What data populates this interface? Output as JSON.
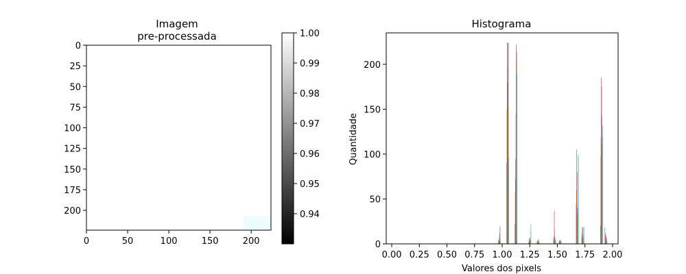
{
  "chart_data": [
    {
      "type": "heatmap",
      "title_line1": "Imagem",
      "title_line2": "pre-processada",
      "xticks": [
        "0",
        "50",
        "100",
        "150",
        "200"
      ],
      "yticks": [
        "0",
        "25",
        "50",
        "75",
        "100",
        "125",
        "150",
        "175",
        "200"
      ],
      "xlim": [
        0,
        224
      ],
      "ylim": [
        224,
        0
      ],
      "image_fill": "#ffffff",
      "corner_tint": "#eefbfb",
      "colorbar": {
        "colormap": "gray",
        "range": [
          0.93,
          1.0
        ],
        "ticks": [
          "0.94",
          "0.95",
          "0.96",
          "0.97",
          "0.98",
          "0.99",
          "1.00"
        ]
      }
    },
    {
      "type": "bar",
      "title": "Histograma",
      "xlabel": "Valores dos pixels",
      "ylabel": "Quantidade",
      "xlim": [
        -0.05,
        2.05
      ],
      "ylim": [
        0,
        235
      ],
      "xticks": [
        "0.00",
        "0.25",
        "0.50",
        "0.75",
        "1.00",
        "1.25",
        "1.50",
        "1.75",
        "2.00"
      ],
      "yticks": [
        "0",
        "50",
        "100",
        "150",
        "200"
      ],
      "colors": [
        "#1f77b4",
        "#ff7f0e",
        "#2ca02c",
        "#d62728",
        "#9467bd",
        "#8c564b",
        "#e377c2",
        "#7f7f7f",
        "#bcbd22",
        "#17becf"
      ],
      "groups": [
        {
          "x": 0.975,
          "values": [
            4,
            3,
            2,
            5,
            8,
            12,
            18,
            20,
            6,
            3
          ]
        },
        {
          "x": 1.05,
          "values": [
            90,
            150,
            180,
            224,
            224,
            224,
            195,
            224,
            155,
            96
          ]
        },
        {
          "x": 1.125,
          "values": [
            22,
            58,
            72,
            95,
            145,
            222,
            218,
            214,
            205,
            190
          ]
        },
        {
          "x": 1.25,
          "values": [
            2,
            4,
            6,
            3,
            5,
            7,
            2,
            4,
            14,
            22
          ]
        },
        {
          "x": 1.325,
          "values": [
            2,
            3,
            1,
            4,
            2,
            5,
            3,
            2,
            4,
            3
          ]
        },
        {
          "x": 1.475,
          "values": [
            6,
            8,
            4,
            37,
            16,
            8,
            5,
            3,
            6,
            4
          ]
        },
        {
          "x": 1.525,
          "values": [
            2,
            3,
            4,
            2,
            5,
            3,
            2,
            4,
            3,
            2
          ]
        },
        {
          "x": 1.68,
          "values": [
            45,
            60,
            105,
            80,
            40,
            35,
            100,
            40,
            30,
            98
          ]
        },
        {
          "x": 1.73,
          "values": [
            8,
            12,
            18,
            6,
            19,
            10,
            18,
            5,
            8,
            19
          ]
        },
        {
          "x": 1.9,
          "values": [
            20,
            98,
            118,
            185,
            145,
            140,
            175,
            112,
            120,
            132
          ]
        },
        {
          "x": 1.94,
          "values": [
            18,
            10,
            8,
            12,
            6,
            4,
            9,
            7,
            5,
            3
          ]
        }
      ]
    }
  ]
}
